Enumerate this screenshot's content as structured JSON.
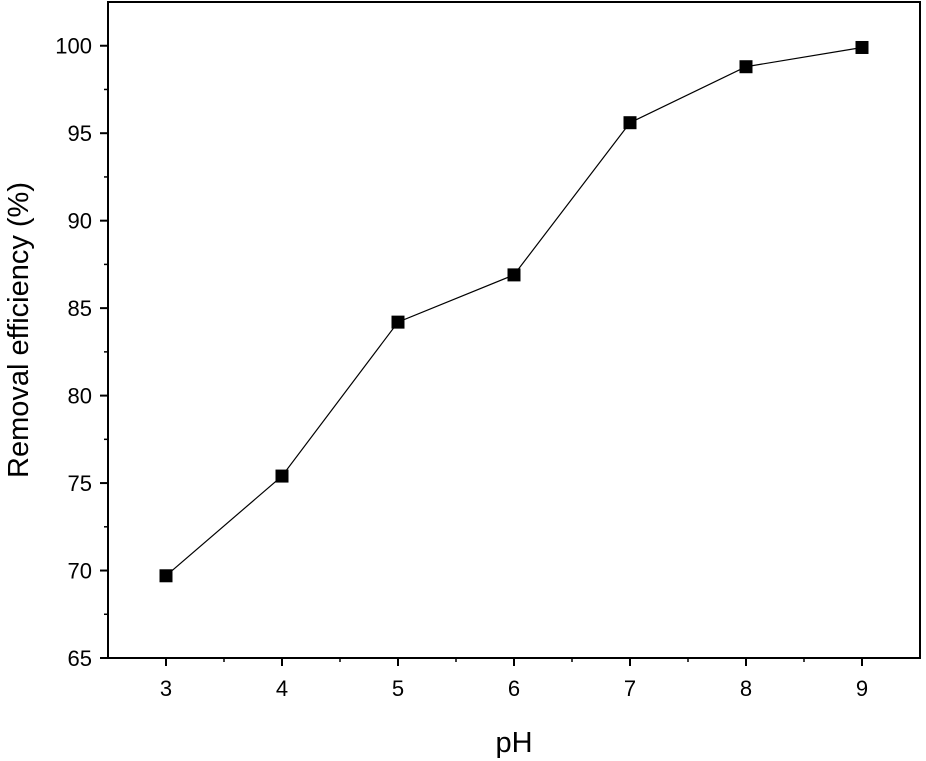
{
  "chart_data": {
    "type": "line",
    "title": "",
    "xlabel": "pH",
    "ylabel": "Removal efficiency (%)",
    "x": [
      3,
      4,
      5,
      6,
      7,
      8,
      9
    ],
    "series": [
      {
        "values": [
          69.7,
          75.4,
          84.2,
          86.9,
          95.6,
          98.8,
          99.9
        ],
        "marker": "square",
        "color": "#000000"
      }
    ],
    "xlim": [
      2.5,
      9.5
    ],
    "ylim": [
      65,
      102.5
    ],
    "xticks": [
      "3",
      "4",
      "5",
      "6",
      "7",
      "8",
      "9"
    ],
    "yticks": [
      "65",
      "70",
      "75",
      "80",
      "85",
      "90",
      "95",
      "100"
    ],
    "grid": false,
    "legend": "none"
  }
}
